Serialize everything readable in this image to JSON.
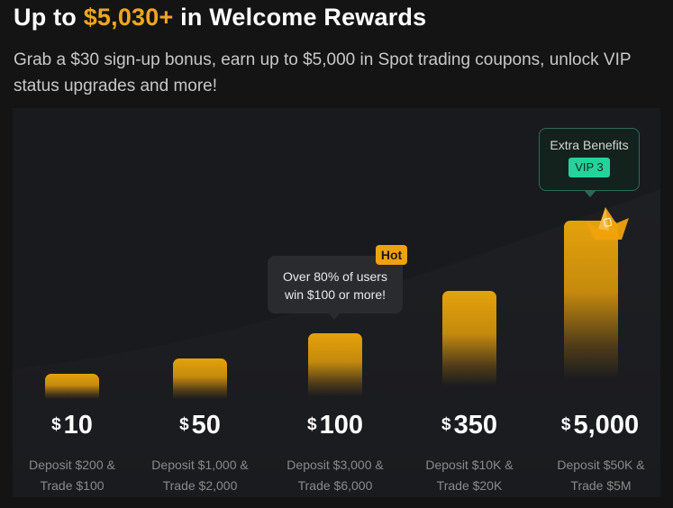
{
  "header": {
    "title_prefix": "Up to",
    "title_amount": "$5,030+",
    "title_suffix": "in Welcome Rewards",
    "subtitle": "Grab a $30 sign-up bonus, earn up to $5,000 in Spot trading coupons, unlock VIP status upgrades and more!"
  },
  "tiers": [
    {
      "currency": "$",
      "amount": "10",
      "condition_line1": "Deposit $200 &",
      "condition_line2": "Trade $100"
    },
    {
      "currency": "$",
      "amount": "50",
      "condition_line1": "Deposit $1,000 &",
      "condition_line2": "Trade $2,000"
    },
    {
      "currency": "$",
      "amount": "100",
      "condition_line1": "Deposit $3,000 &",
      "condition_line2": "Trade $6,000"
    },
    {
      "currency": "$",
      "amount": "350",
      "condition_line1": "Deposit $10K &",
      "condition_line2": "Trade $20K"
    },
    {
      "currency": "$",
      "amount": "5,000",
      "condition_line1": "Deposit $50K &",
      "condition_line2": "Trade $5M"
    }
  ],
  "tooltip": {
    "badge": "Hot",
    "line1": "Over 80% of users",
    "line2": "win $100 or more!"
  },
  "extra_benefits": {
    "title": "Extra Benefits",
    "badge": "VIP 3"
  },
  "colors": {
    "accent": "#f0a520",
    "vip_green": "#25d39a",
    "background": "#141414"
  }
}
